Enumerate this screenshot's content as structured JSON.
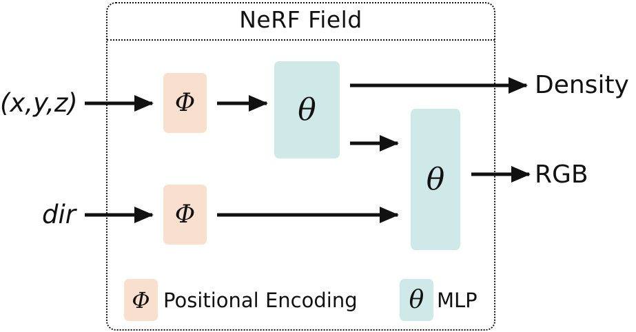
{
  "frame": {
    "title": "NeRF Field"
  },
  "inputs": {
    "position": "(x,y,z)",
    "direction": "dir"
  },
  "blocks": {
    "encoding_symbol": "Φ",
    "mlp_symbol": "θ"
  },
  "outputs": {
    "density": "Density",
    "rgb": "RGB"
  },
  "legend": {
    "encoding_symbol": "Φ",
    "encoding_label": "Positional Encoding",
    "mlp_symbol": "θ",
    "mlp_label": "MLP"
  },
  "colors": {
    "encoding_fill": "#f9dfcd",
    "mlp_fill": "#cfe9e8",
    "line": "#111111"
  }
}
